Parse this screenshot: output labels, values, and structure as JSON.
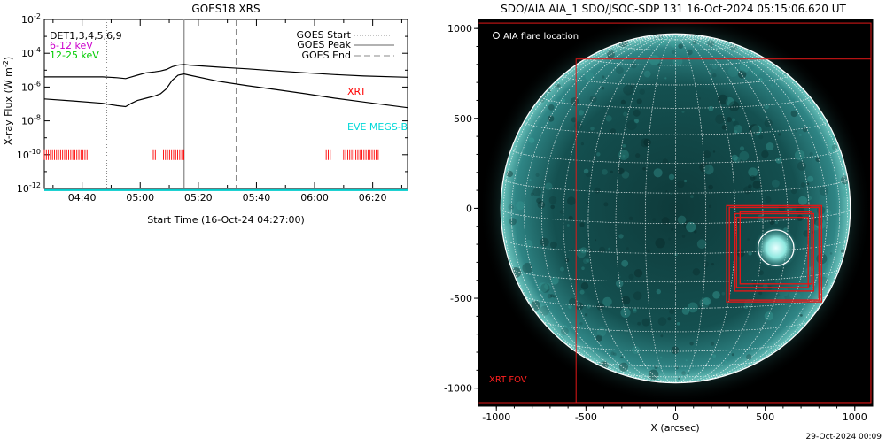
{
  "chart_data": [
    {
      "type": "line",
      "title": "GOES18 XRS",
      "xlabel": "Start Time (16-Oct-24 04:27:00)",
      "ylabel": "X-ray Flux (W m^-2)",
      "ylabel_main": "X-ray Flux (W m",
      "ylabel_exp": "-2",
      "ylabel_close": ")",
      "x_ticks": [
        "04:40",
        "05:00",
        "05:20",
        "05:40",
        "06:00",
        "06:20"
      ],
      "y_ticks": [
        {
          "mantissa": "10",
          "exp": "-2"
        },
        {
          "mantissa": "10",
          "exp": "-4"
        },
        {
          "mantissa": "10",
          "exp": "-6"
        },
        {
          "mantissa": "10",
          "exp": "-8"
        },
        {
          "mantissa": "10",
          "exp": "-10"
        },
        {
          "mantissa": "10",
          "exp": "-12"
        }
      ],
      "x_range_minutes": [
        0,
        125
      ],
      "y_log_range": [
        -12,
        -2
      ],
      "annotations": {
        "detectors": "DET1,3,4,5,6,9",
        "band_6_12": "6-12 keV",
        "band_12_25": "12-25 keV",
        "xrt": "XRT",
        "eve": "EVE MEGS-B"
      },
      "legend": {
        "start": "GOES Start",
        "peak": "GOES Peak",
        "end": "GOES End"
      },
      "goes_times_min": {
        "start": 21.5,
        "peak": 48,
        "end": 66
      },
      "series": [
        {
          "name": "",
          "color": "#000000",
          "x": [
            0,
            10,
            20,
            25,
            28,
            30,
            32,
            35,
            38,
            40,
            42,
            44,
            46,
            48,
            50,
            60,
            70,
            80,
            90,
            100,
            110,
            125
          ],
          "y": [
            4e-06,
            4e-06,
            4e-06,
            3.6e-06,
            3.2e-06,
            4e-06,
            5e-06,
            7e-06,
            8e-06,
            9e-06,
            1.1e-05,
            1.6e-05,
            2e-05,
            2.2e-05,
            2e-05,
            1.5e-05,
            1.2e-05,
            9e-06,
            7e-06,
            5.5e-06,
            4.5e-06,
            3.8e-06
          ]
        },
        {
          "name": "",
          "color": "#000000",
          "x": [
            0,
            10,
            20,
            25,
            28,
            30,
            32,
            35,
            38,
            40,
            42,
            44,
            46,
            48,
            50,
            60,
            70,
            80,
            90,
            100,
            110,
            125
          ],
          "y": [
            2e-07,
            1.5e-07,
            1.1e-07,
            8e-08,
            7e-08,
            1.1e-07,
            1.6e-07,
            2.2e-07,
            3e-07,
            4e-07,
            8e-07,
            2.5e-06,
            5e-06,
            6e-06,
            5e-06,
            2.2e-06,
            1.2e-06,
            7e-07,
            4e-07,
            2.2e-07,
            1.3e-07,
            6e-08
          ]
        },
        {
          "name": "",
          "color": "#00cccc",
          "x": [
            0,
            125
          ],
          "y": [
            8e-13,
            8e-13
          ]
        }
      ],
      "xrt_intervals_min": [
        [
          0,
          15
        ],
        [
          37.5,
          38.5
        ],
        [
          41,
          48
        ],
        [
          97,
          99
        ],
        [
          103,
          115
        ]
      ]
    },
    {
      "type": "scatter",
      "title": "SDO/AIA AIA_1 SDO/JSOC-SDP 131 16-Oct-2024 05:15:06.620 UT",
      "xlabel": "X (arcsec)",
      "ylabel": "",
      "x_ticks": [
        "-1000",
        "-500",
        "0",
        "500",
        "1000"
      ],
      "y_ticks": [
        "1000",
        "500",
        "0",
        "-500",
        "-1000"
      ],
      "x_range": [
        -1100,
        1100
      ],
      "y_range": [
        -1100,
        1050
      ],
      "solar_radius_arcsec": 975,
      "legend_flare": "AIA flare location",
      "legend_fov": "XRT FOV",
      "flare_location": [
        560,
        -220
      ],
      "flare_radius_arcsec": 100,
      "xrt_fov_boxes": [
        [
          -1100,
          -1080,
          1090,
          1030
        ],
        [
          -555,
          -1080,
          1090,
          830
        ],
        [
          285,
          -520,
          815,
          15
        ],
        [
          300,
          -510,
          800,
          5
        ],
        [
          330,
          -460,
          770,
          -30
        ],
        [
          340,
          -440,
          740,
          -50
        ],
        [
          360,
          -420,
          760,
          -20
        ]
      ],
      "timestamp": "29-Oct-2024 00:09"
    }
  ]
}
